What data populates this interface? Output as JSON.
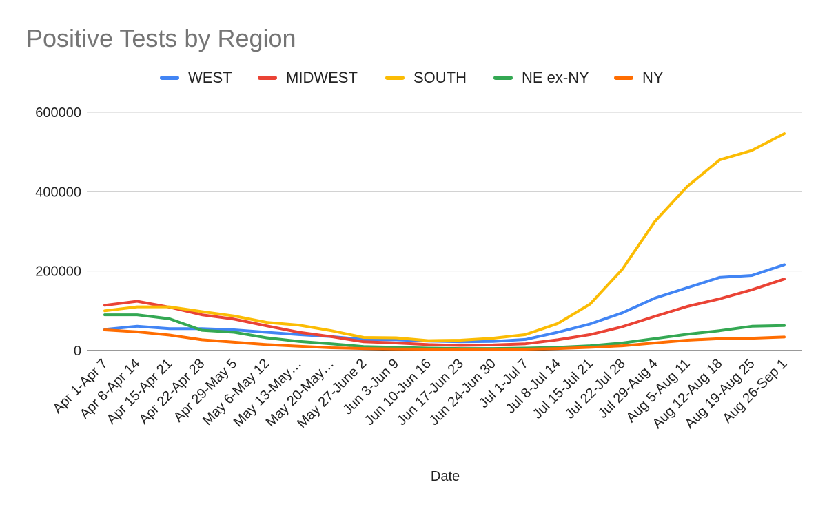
{
  "chart_data": {
    "type": "line",
    "title": "Positive Tests by Region",
    "xlabel": "Date",
    "ylabel": "",
    "ylim": [
      0,
      600000
    ],
    "yticks": [
      "0",
      "200000",
      "400000",
      "600000"
    ],
    "ytick_values": [
      0,
      200000,
      400000,
      600000
    ],
    "grid": true,
    "legend_position": "top",
    "categories": [
      "Apr 1-Apr 7",
      "Apr 8-Apr 14",
      "Apr 15-Apr 21",
      "Apr 22-Apr 28",
      "Apr 29-May 5",
      "May 6-May 12",
      "May 13-May…",
      "May 20-May…",
      "May 27-June 2",
      "Jun 3-Jun 9",
      "Jun 10-Jun 16",
      "Jun 17-Jun 23",
      "Jun 24-Jun 30",
      "Jul 1-Jul 7",
      "Jul 8-Jul 14",
      "Jul 15-Jul 21",
      "Jul 22-Jul 28",
      "Jul 29-Aug 4",
      "Aug 5-Aug 11",
      "Aug 12-Aug 18",
      "Aug 19-Aug 25",
      "Aug 26-Sep 1"
    ],
    "series": [
      {
        "name": "WEST",
        "color": "#4285f4",
        "values": [
          53000,
          61000,
          55000,
          55000,
          52000,
          46000,
          40000,
          35000,
          28000,
          27000,
          24000,
          22000,
          23000,
          28000,
          46000,
          67000,
          95000,
          132000,
          158000,
          184000,
          189000,
          216000
        ]
      },
      {
        "name": "MIDWEST",
        "color": "#ea4335",
        "values": [
          114000,
          124000,
          109000,
          90000,
          79000,
          62000,
          46000,
          35000,
          22000,
          19000,
          15000,
          13000,
          14000,
          17000,
          27000,
          40000,
          60000,
          86000,
          111000,
          130000,
          153000,
          180000
        ]
      },
      {
        "name": "SOUTH",
        "color": "#fbbc04",
        "values": [
          100000,
          110000,
          110000,
          98000,
          87000,
          71000,
          64000,
          50000,
          33000,
          32000,
          25000,
          26000,
          31000,
          40000,
          68000,
          117000,
          205000,
          325000,
          413000,
          480000,
          504000,
          546000
        ]
      },
      {
        "name": "NE ex-NY",
        "color": "#34a853",
        "values": [
          90000,
          90000,
          80000,
          51000,
          46000,
          32000,
          23000,
          17000,
          10000,
          8000,
          6000,
          5000,
          5000,
          6000,
          8000,
          12000,
          19000,
          30000,
          41000,
          50000,
          61000,
          63000
        ]
      },
      {
        "name": "NY",
        "color": "#ff6d01",
        "values": [
          52000,
          47000,
          39000,
          27000,
          21000,
          15000,
          11000,
          7000,
          5000,
          4000,
          3500,
          3000,
          3000,
          3500,
          5000,
          8000,
          12000,
          19000,
          26000,
          30000,
          31000,
          34000
        ]
      }
    ]
  }
}
